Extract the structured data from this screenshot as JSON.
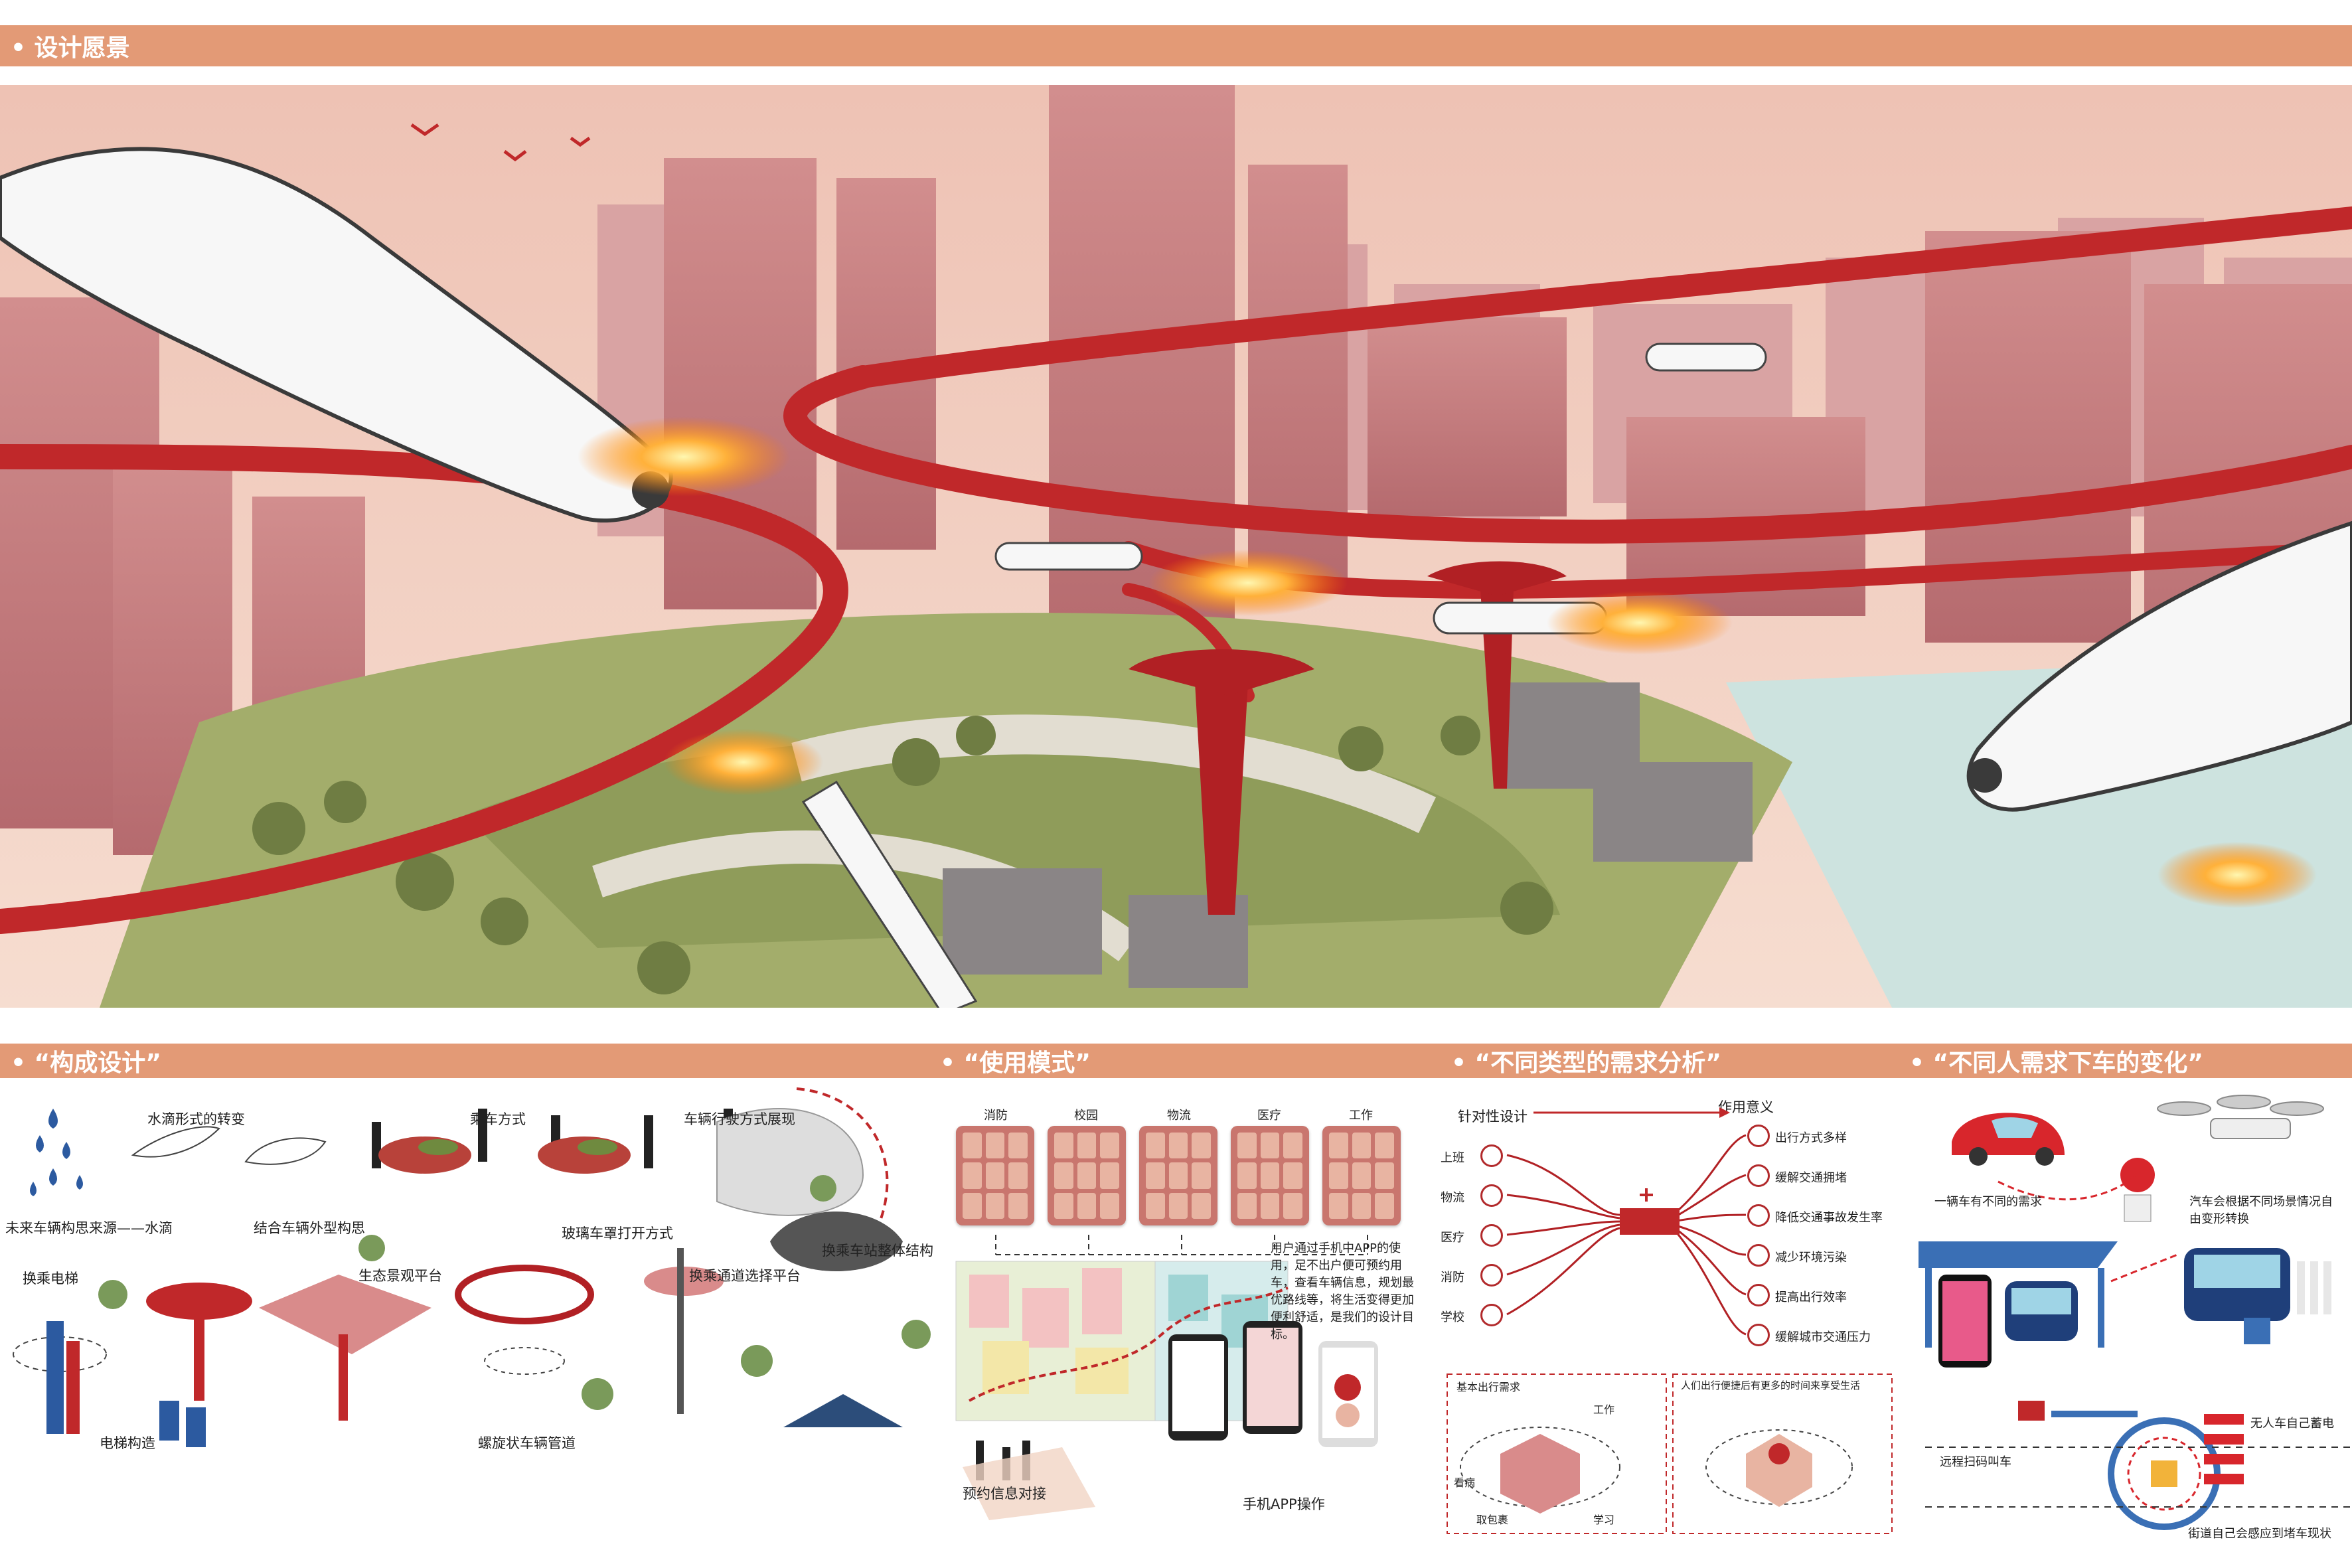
{
  "header": {
    "title": "• 设计愿景"
  },
  "sections": {
    "composition": {
      "title": "• “构成设计”"
    },
    "usage": {
      "title": "• “使用模式”"
    },
    "demand": {
      "title": "• “不同类型的需求分析”"
    },
    "change": {
      "title": "• “不同人需求下车的变化”"
    }
  },
  "composition": {
    "drop_transform": "水滴形式的转变",
    "source": "未来车辆构思来源——水滴",
    "combine": "结合车辆外型构思",
    "ride": "乘车方式",
    "glass": "玻璃车罩打开方式",
    "drive": "车辆行驶方式展现",
    "elevator_title": "换乘电梯",
    "ecology": "生态景观平台",
    "channel_platform": "换乘通道选择平台",
    "station_structure": "换乘车站整体结构",
    "elevator_structure": "电梯构造",
    "spiral": "螺旋状车辆管道"
  },
  "usage": {
    "categories": [
      "消防",
      "校园",
      "物流",
      "医疗",
      "工作"
    ],
    "description": "用户通过手机中APP的使用，足不出户便可预约用车，查看车辆信息，规划最优路线等，将生活变得更加便利舒适，是我们的设计目标。",
    "reserve": "预约信息对接",
    "app": "手机APP操作"
  },
  "demand": {
    "targeted": "针对性设计",
    "meaning": "作用意义",
    "left_items": [
      "上班",
      "物流",
      "医疗",
      "消防",
      "学校"
    ],
    "right_items": [
      "出行方式多样",
      "缓解交通拥堵",
      "降低交通事故发生率",
      "减少环境污染",
      "提高出行效率",
      "缓解城市交通压力"
    ],
    "box1_title": "基本出行需求",
    "box1_labels": [
      "工作",
      "看病",
      "取包裹",
      "学习"
    ],
    "box2_title": "人们出行便捷后有更多的时间来享受生活"
  },
  "change": {
    "one_car": "一辆车有不同的需求",
    "auto_transform": "汽车会根据不同场景情况自由变形转换",
    "remote": "远程扫码叫车",
    "charge": "无人车自己蓄电",
    "street": "街道自己会感应到堵车现状"
  },
  "colors": {
    "accent": "#e39a76",
    "red": "#c0282a",
    "pink": "#d98b8b"
  }
}
